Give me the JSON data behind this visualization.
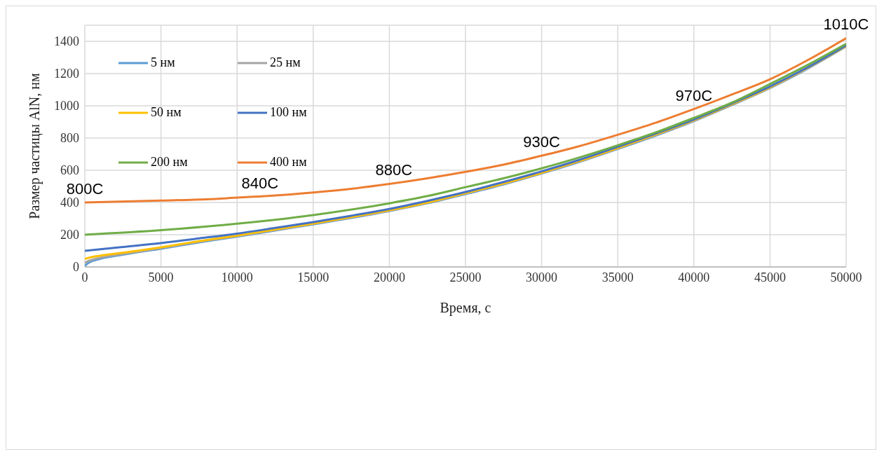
{
  "chart_data": {
    "type": "line",
    "xlabel": "Время, с",
    "ylabel": "Размер частицы AlN, нм",
    "xlim": [
      0,
      50000
    ],
    "xticks": [
      0,
      5000,
      10000,
      15000,
      20000,
      25000,
      30000,
      35000,
      40000,
      45000,
      50000
    ],
    "ylim": [
      0,
      1500
    ],
    "yticks": [
      0,
      200,
      400,
      600,
      800,
      1000,
      1200,
      1400
    ],
    "grid": true,
    "legend": "top left",
    "marker": "none",
    "line_style": "solid",
    "series": [
      {
        "name": "5 нм",
        "color": "#5b9bd5",
        "x": [
          0,
          100,
          300,
          1000,
          2500,
          5000,
          7500,
          10000,
          12500,
          15000,
          17500,
          20000,
          22500,
          25000,
          27500,
          30000,
          32500,
          35000,
          37500,
          40000,
          42500,
          45000,
          47500,
          50000
        ],
        "values": [
          5,
          15,
          28,
          50,
          76,
          113,
          152,
          188,
          226,
          264,
          304,
          347,
          395,
          452,
          512,
          580,
          652,
          732,
          815,
          905,
          1005,
          1110,
          1232,
          1368
        ]
      },
      {
        "name": "25 нм",
        "color": "#a5a5a5",
        "x": [
          0,
          200,
          500,
          1000,
          2500,
          5000,
          7500,
          10000,
          12500,
          15000,
          17500,
          20000,
          22500,
          25000,
          27500,
          30000,
          32500,
          35000,
          37500,
          40000,
          42500,
          45000,
          47500,
          50000
        ],
        "values": [
          25,
          35,
          45,
          57,
          80,
          117,
          156,
          191,
          229,
          267,
          307,
          349,
          397,
          455,
          515,
          582,
          655,
          735,
          818,
          907,
          1007,
          1112,
          1235,
          1370
        ]
      },
      {
        "name": "50 нм",
        "color": "#ffc000",
        "x": [
          0,
          500,
          1000,
          2500,
          5000,
          7500,
          10000,
          12500,
          15000,
          17500,
          20000,
          22500,
          25000,
          27500,
          30000,
          32500,
          35000,
          37500,
          40000,
          42500,
          45000,
          47500,
          50000
        ],
        "values": [
          50,
          62,
          70,
          88,
          122,
          160,
          195,
          232,
          270,
          310,
          352,
          400,
          458,
          518,
          585,
          658,
          738,
          822,
          910,
          1010,
          1115,
          1238,
          1372
        ]
      },
      {
        "name": "100 нм",
        "color": "#4472c4",
        "x": [
          0,
          2500,
          5000,
          7500,
          10000,
          12500,
          15000,
          17500,
          20000,
          22500,
          25000,
          27500,
          30000,
          32500,
          35000,
          37500,
          40000,
          42500,
          45000,
          47500,
          50000
        ],
        "values": [
          100,
          124,
          148,
          177,
          207,
          242,
          278,
          318,
          360,
          410,
          465,
          527,
          593,
          665,
          745,
          828,
          915,
          1015,
          1120,
          1240,
          1375
        ]
      },
      {
        "name": "200 нм",
        "color": "#70ad47",
        "x": [
          0,
          5000,
          10000,
          15000,
          20000,
          22500,
          25000,
          27500,
          30000,
          32500,
          35000,
          37500,
          40000,
          42500,
          45000,
          47500,
          50000
        ],
        "values": [
          200,
          228,
          268,
          322,
          395,
          440,
          495,
          550,
          612,
          680,
          755,
          835,
          925,
          1020,
          1135,
          1255,
          1385
        ]
      },
      {
        "name": "400 нм",
        "color": "#ed7d31",
        "x": [
          0,
          5000,
          8000,
          10000,
          12000,
          15000,
          17500,
          20000,
          22500,
          25000,
          27500,
          30000,
          32500,
          35000,
          37500,
          40000,
          42500,
          45000,
          47500,
          50000
        ],
        "values": [
          400,
          412,
          420,
          430,
          440,
          462,
          485,
          515,
          550,
          590,
          635,
          690,
          750,
          820,
          895,
          980,
          1070,
          1165,
          1285,
          1420
        ]
      }
    ],
    "annotations": [
      {
        "text": "800C",
        "x": 0,
        "y": 400
      },
      {
        "text": "840C",
        "x": 11500,
        "y": 436
      },
      {
        "text": "880C",
        "x": 20300,
        "y": 518
      },
      {
        "text": "930C",
        "x": 30000,
        "y": 690
      },
      {
        "text": "970C",
        "x": 40000,
        "y": 980
      },
      {
        "text": "1010C",
        "x": 50000,
        "y": 1420
      }
    ]
  }
}
